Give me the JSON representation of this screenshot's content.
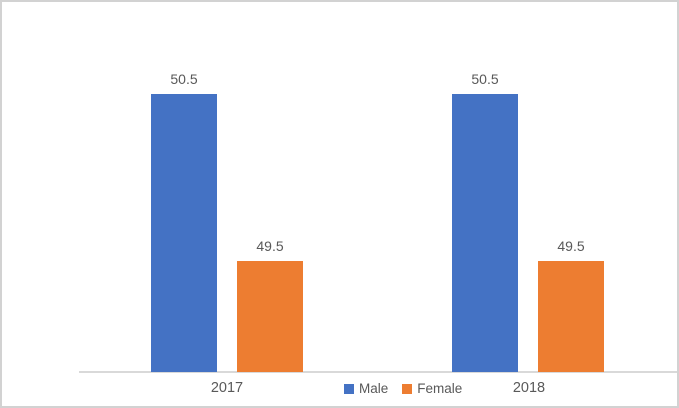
{
  "chart_data": {
    "type": "bar",
    "title": "",
    "xlabel": "",
    "ylabel": "",
    "categories": [
      "2017",
      "2018"
    ],
    "series": [
      {
        "name": "Male",
        "color": "#4472C4",
        "values": [
          50.5,
          50.5
        ]
      },
      {
        "name": "Female",
        "color": "#ED7D31",
        "values": [
          49.5,
          49.5
        ]
      }
    ],
    "data_labels_shown": true,
    "ylim": [
      48.84,
      51.0
    ],
    "y_axis_visible": false,
    "gridlines": false,
    "legend_position": "bottom-center",
    "label_color": "#595959",
    "axis_line_color": "#D9D9D9",
    "frame_color": "#D2D2D2"
  }
}
